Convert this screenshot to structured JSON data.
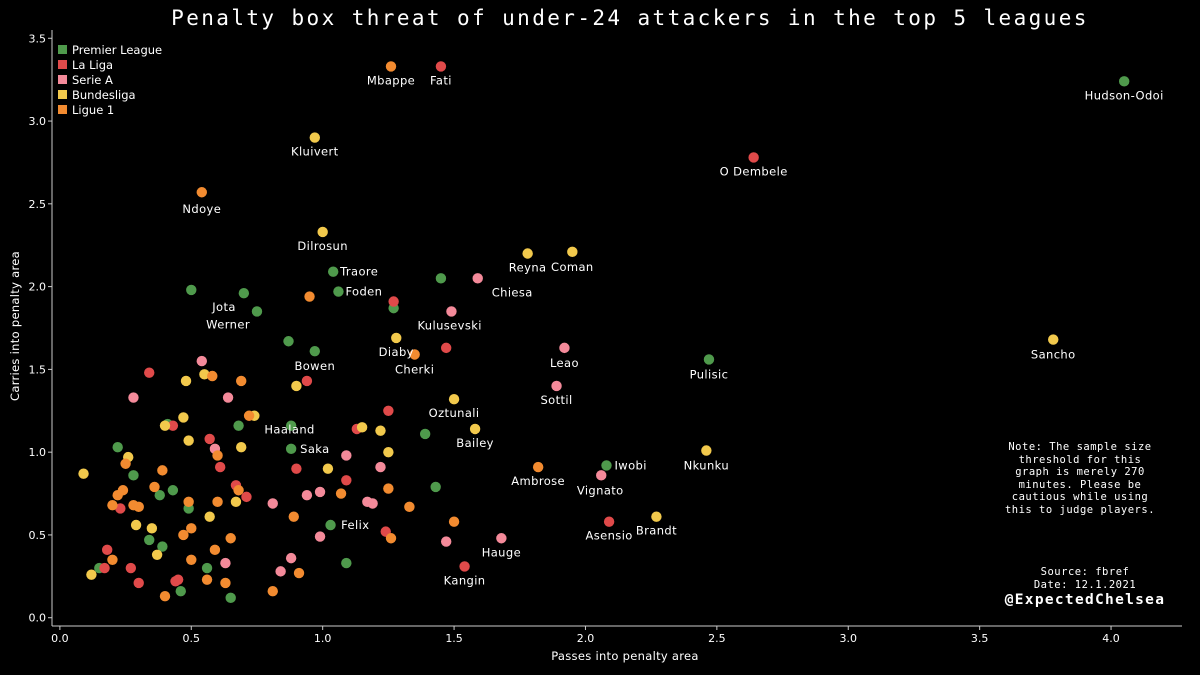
{
  "header": {
    "title": "Penalty box threat of under-24 attackers in the top 5 leagues"
  },
  "note": "Note: The sample size threshold for this graph is merely 270 minutes. Please be cautious while using this to judge players.",
  "source": {
    "line1": "Source: fbref",
    "line2": "Date: 12.1.2021"
  },
  "handle": "@ExpectedChelsea",
  "chart_data": {
    "type": "scatter",
    "title": "Penalty box threat of under-24 attackers in the top 5 leagues",
    "xlabel": "Passes into penalty area",
    "ylabel": "Carries into penalty area",
    "xlim": [
      -0.03,
      4.27
    ],
    "ylim": [
      -0.05,
      3.55
    ],
    "xticks": [
      0.0,
      0.5,
      1.0,
      1.5,
      2.0,
      2.5,
      3.0,
      3.5,
      4.0
    ],
    "yticks": [
      0.0,
      0.5,
      1.0,
      1.5,
      2.0,
      2.5,
      3.0,
      3.5
    ],
    "xtick_labels": [
      "0.0",
      "0.5",
      "1.0",
      "1.5",
      "2.0",
      "2.5",
      "3.0",
      "3.5",
      "4.0"
    ],
    "ytick_labels": [
      "0.0",
      "0.5",
      "1.0",
      "1.5",
      "2.0",
      "2.5",
      "3.0",
      "3.5"
    ],
    "legend_position": "top-left",
    "series": [
      {
        "name": "Premier League",
        "color": "#4f9a4c",
        "points": [
          {
            "x": 4.05,
            "y": 3.24,
            "label": "Hudson-Odoi"
          },
          {
            "x": 1.04,
            "y": 2.09,
            "label": "Traore"
          },
          {
            "x": 1.06,
            "y": 1.97,
            "label": "Foden"
          },
          {
            "x": 0.7,
            "y": 1.96,
            "label": "Jota"
          },
          {
            "x": 0.75,
            "y": 1.85,
            "label": "Werner"
          },
          {
            "x": 0.97,
            "y": 1.61,
            "label": "Bowen"
          },
          {
            "x": 2.47,
            "y": 1.56,
            "label": "Pulisic"
          },
          {
            "x": 0.88,
            "y": 1.02,
            "label": "Saka"
          },
          {
            "x": 2.08,
            "y": 0.92,
            "label": "Iwobi"
          },
          {
            "x": 1.45,
            "y": 2.05
          },
          {
            "x": 1.27,
            "y": 1.87
          },
          {
            "x": 0.5,
            "y": 1.98
          },
          {
            "x": 0.87,
            "y": 1.67
          },
          {
            "x": 1.39,
            "y": 1.11
          },
          {
            "x": 0.88,
            "y": 1.16
          },
          {
            "x": 0.68,
            "y": 1.16
          },
          {
            "x": 0.41,
            "y": 1.17
          },
          {
            "x": 0.22,
            "y": 1.03
          },
          {
            "x": 1.43,
            "y": 0.79
          },
          {
            "x": 0.43,
            "y": 0.77
          },
          {
            "x": 0.38,
            "y": 0.74
          },
          {
            "x": 0.28,
            "y": 0.86
          },
          {
            "x": 0.49,
            "y": 0.66
          },
          {
            "x": 1.03,
            "y": 0.56
          },
          {
            "x": 0.34,
            "y": 0.47
          },
          {
            "x": 0.39,
            "y": 0.43
          },
          {
            "x": 1.09,
            "y": 0.33
          },
          {
            "x": 0.56,
            "y": 0.3
          },
          {
            "x": 0.15,
            "y": 0.3
          },
          {
            "x": 0.46,
            "y": 0.16
          },
          {
            "x": 0.65,
            "y": 0.12
          }
        ]
      },
      {
        "name": "La Liga",
        "color": "#e04a4a",
        "points": [
          {
            "x": 1.45,
            "y": 3.33,
            "label": "Fati"
          },
          {
            "x": 2.64,
            "y": 2.78,
            "label": "O Dembele"
          },
          {
            "x": 2.09,
            "y": 0.58,
            "label": "Asensio"
          },
          {
            "x": 1.54,
            "y": 0.31,
            "label": "Kangin"
          },
          {
            "x": 1.27,
            "y": 1.91
          },
          {
            "x": 1.47,
            "y": 1.63
          },
          {
            "x": 0.94,
            "y": 1.43
          },
          {
            "x": 0.34,
            "y": 1.48
          },
          {
            "x": 1.25,
            "y": 1.25
          },
          {
            "x": 1.13,
            "y": 1.14
          },
          {
            "x": 0.43,
            "y": 1.16
          },
          {
            "x": 0.57,
            "y": 1.08
          },
          {
            "x": 0.61,
            "y": 0.91
          },
          {
            "x": 0.9,
            "y": 0.9
          },
          {
            "x": 1.09,
            "y": 0.83
          },
          {
            "x": 0.67,
            "y": 0.8
          },
          {
            "x": 0.71,
            "y": 0.73
          },
          {
            "x": 0.23,
            "y": 0.66
          },
          {
            "x": 1.24,
            "y": 0.52
          },
          {
            "x": 0.18,
            "y": 0.41
          },
          {
            "x": 0.17,
            "y": 0.3
          },
          {
            "x": 0.27,
            "y": 0.3
          },
          {
            "x": 0.3,
            "y": 0.21
          },
          {
            "x": 0.45,
            "y": 0.23
          },
          {
            "x": 0.44,
            "y": 0.22
          }
        ]
      },
      {
        "name": "Serie A",
        "color": "#f48a9a",
        "points": [
          {
            "x": 1.59,
            "y": 2.05,
            "label": "Chiesa"
          },
          {
            "x": 1.49,
            "y": 1.85,
            "label": "Kulusevski"
          },
          {
            "x": 1.92,
            "y": 1.63,
            "label": "Leao"
          },
          {
            "x": 1.89,
            "y": 1.4,
            "label": "Sottil"
          },
          {
            "x": 2.06,
            "y": 0.86,
            "label": "Vignato"
          },
          {
            "x": 1.68,
            "y": 0.48,
            "label": "Hauge"
          },
          {
            "x": 0.54,
            "y": 1.55
          },
          {
            "x": 0.64,
            "y": 1.33
          },
          {
            "x": 0.28,
            "y": 1.33
          },
          {
            "x": 0.59,
            "y": 1.02
          },
          {
            "x": 1.09,
            "y": 0.98
          },
          {
            "x": 1.22,
            "y": 0.91
          },
          {
            "x": 0.99,
            "y": 0.76
          },
          {
            "x": 0.94,
            "y": 0.74
          },
          {
            "x": 0.81,
            "y": 0.69
          },
          {
            "x": 1.17,
            "y": 0.7
          },
          {
            "x": 1.19,
            "y": 0.69
          },
          {
            "x": 0.99,
            "y": 0.49
          },
          {
            "x": 1.47,
            "y": 0.46
          },
          {
            "x": 0.63,
            "y": 0.33
          },
          {
            "x": 0.88,
            "y": 0.36
          },
          {
            "x": 0.84,
            "y": 0.28
          }
        ]
      },
      {
        "name": "Bundesliga",
        "color": "#f2c94c",
        "points": [
          {
            "x": 0.97,
            "y": 2.9,
            "label": "Kluivert"
          },
          {
            "x": 1.0,
            "y": 2.33,
            "label": "Dilrosun"
          },
          {
            "x": 1.78,
            "y": 2.2,
            "label": "Reyna"
          },
          {
            "x": 1.95,
            "y": 2.21,
            "label": "Coman"
          },
          {
            "x": 3.78,
            "y": 1.68,
            "label": "Sancho"
          },
          {
            "x": 1.28,
            "y": 1.69,
            "label": "Diaby"
          },
          {
            "x": 0.74,
            "y": 1.22,
            "label": "Haaland"
          },
          {
            "x": 1.5,
            "y": 1.32,
            "label": "Oztunali"
          },
          {
            "x": 1.58,
            "y": 1.14,
            "label": "Bailey"
          },
          {
            "x": 2.46,
            "y": 1.01,
            "label": "Nkunku"
          },
          {
            "x": 2.27,
            "y": 0.61,
            "label": "Brandt"
          },
          {
            "x": 0.48,
            "y": 1.43
          },
          {
            "x": 0.55,
            "y": 1.47
          },
          {
            "x": 0.9,
            "y": 1.4
          },
          {
            "x": 0.47,
            "y": 1.21
          },
          {
            "x": 0.4,
            "y": 1.16
          },
          {
            "x": 0.49,
            "y": 1.07
          },
          {
            "x": 0.69,
            "y": 1.03
          },
          {
            "x": 1.22,
            "y": 1.13
          },
          {
            "x": 1.25,
            "y": 1.0
          },
          {
            "x": 1.15,
            "y": 1.15
          },
          {
            "x": 0.26,
            "y": 0.97
          },
          {
            "x": 1.02,
            "y": 0.9
          },
          {
            "x": 0.09,
            "y": 0.87
          },
          {
            "x": 0.29,
            "y": 0.56
          },
          {
            "x": 0.35,
            "y": 0.54
          },
          {
            "x": 0.57,
            "y": 0.61
          },
          {
            "x": 0.67,
            "y": 0.7
          },
          {
            "x": 0.37,
            "y": 0.38
          },
          {
            "x": 0.12,
            "y": 0.26
          }
        ]
      },
      {
        "name": "Ligue 1",
        "color": "#f28b30",
        "points": [
          {
            "x": 1.26,
            "y": 3.33,
            "label": "Mbappe"
          },
          {
            "x": 0.54,
            "y": 2.57,
            "label": "Ndoye"
          },
          {
            "x": 1.35,
            "y": 1.59,
            "label": "Cherki"
          },
          {
            "x": 1.82,
            "y": 0.91,
            "label": "Ambrose"
          },
          {
            "x": 0.95,
            "y": 1.94
          },
          {
            "x": 0.69,
            "y": 1.43
          },
          {
            "x": 0.58,
            "y": 1.46
          },
          {
            "x": 0.72,
            "y": 1.22
          },
          {
            "x": 0.6,
            "y": 0.98
          },
          {
            "x": 0.25,
            "y": 0.93
          },
          {
            "x": 0.39,
            "y": 0.89
          },
          {
            "x": 1.25,
            "y": 0.78
          },
          {
            "x": 0.36,
            "y": 0.79
          },
          {
            "x": 0.68,
            "y": 0.77
          },
          {
            "x": 1.07,
            "y": 0.75
          },
          {
            "x": 0.24,
            "y": 0.77
          },
          {
            "x": 0.22,
            "y": 0.74
          },
          {
            "x": 0.2,
            "y": 0.68
          },
          {
            "x": 0.28,
            "y": 0.68
          },
          {
            "x": 0.3,
            "y": 0.67
          },
          {
            "x": 0.49,
            "y": 0.7
          },
          {
            "x": 0.6,
            "y": 0.7
          },
          {
            "x": 1.33,
            "y": 0.67
          },
          {
            "x": 0.89,
            "y": 0.61
          },
          {
            "x": 1.5,
            "y": 0.58
          },
          {
            "x": 0.5,
            "y": 0.54
          },
          {
            "x": 0.47,
            "y": 0.5
          },
          {
            "x": 0.65,
            "y": 0.48
          },
          {
            "x": 1.26,
            "y": 0.48
          },
          {
            "x": 0.59,
            "y": 0.41
          },
          {
            "x": 0.5,
            "y": 0.35
          },
          {
            "x": 0.2,
            "y": 0.35
          },
          {
            "x": 0.91,
            "y": 0.27
          },
          {
            "x": 0.56,
            "y": 0.23
          },
          {
            "x": 0.63,
            "y": 0.21
          },
          {
            "x": 0.4,
            "y": 0.13
          },
          {
            "x": 0.81,
            "y": 0.16
          }
        ]
      }
    ]
  }
}
